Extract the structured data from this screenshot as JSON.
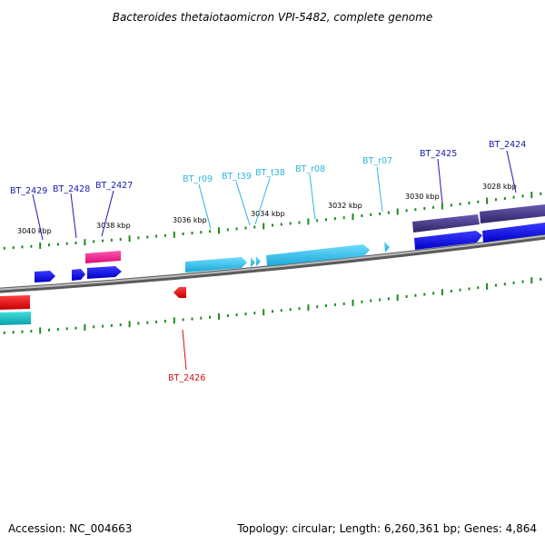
{
  "title": "Bacteroides thetaiotaomicron VPI-5482, complete genome",
  "footer": {
    "accession": "Accession: NC_004663",
    "topology": "Topology: circular; Length: 6,260,361 bp; Genes: 4,864"
  },
  "kbp_labels": [
    "3040 kbp",
    "3038 kbp",
    "3036 kbp",
    "3034 kbp",
    "3032 kbp",
    "3030 kbp",
    "3028 kbp"
  ],
  "genes": [
    {
      "name": "BT_2429",
      "color": "#1a1ab0"
    },
    {
      "name": "BT_2428",
      "color": "#1a1ab0"
    },
    {
      "name": "BT_2427",
      "color": "#1a1ab0"
    },
    {
      "name": "BT_r09",
      "color": "#2fb4e0"
    },
    {
      "name": "BT_t39",
      "color": "#2fb4e0"
    },
    {
      "name": "BT_t38",
      "color": "#2fb4e0"
    },
    {
      "name": "BT_r08",
      "color": "#2fb4e0"
    },
    {
      "name": "BT_r07",
      "color": "#2fb4e0"
    },
    {
      "name": "BT_2425",
      "color": "#1a1ab0"
    },
    {
      "name": "BT_2424",
      "color": "#1a1ab0"
    },
    {
      "name": "BT_2426",
      "color": "#cc1111"
    }
  ],
  "colors": {
    "backbone": "#8a8a8a",
    "tick": "#1e8a1e",
    "cds_blue": "#0a0af0",
    "rrna_cyan": "#39c8f0",
    "dark_purple": "#4a3e8a",
    "pink": "#f02090",
    "red": "#ee1111",
    "teal": "#10c0c8"
  }
}
